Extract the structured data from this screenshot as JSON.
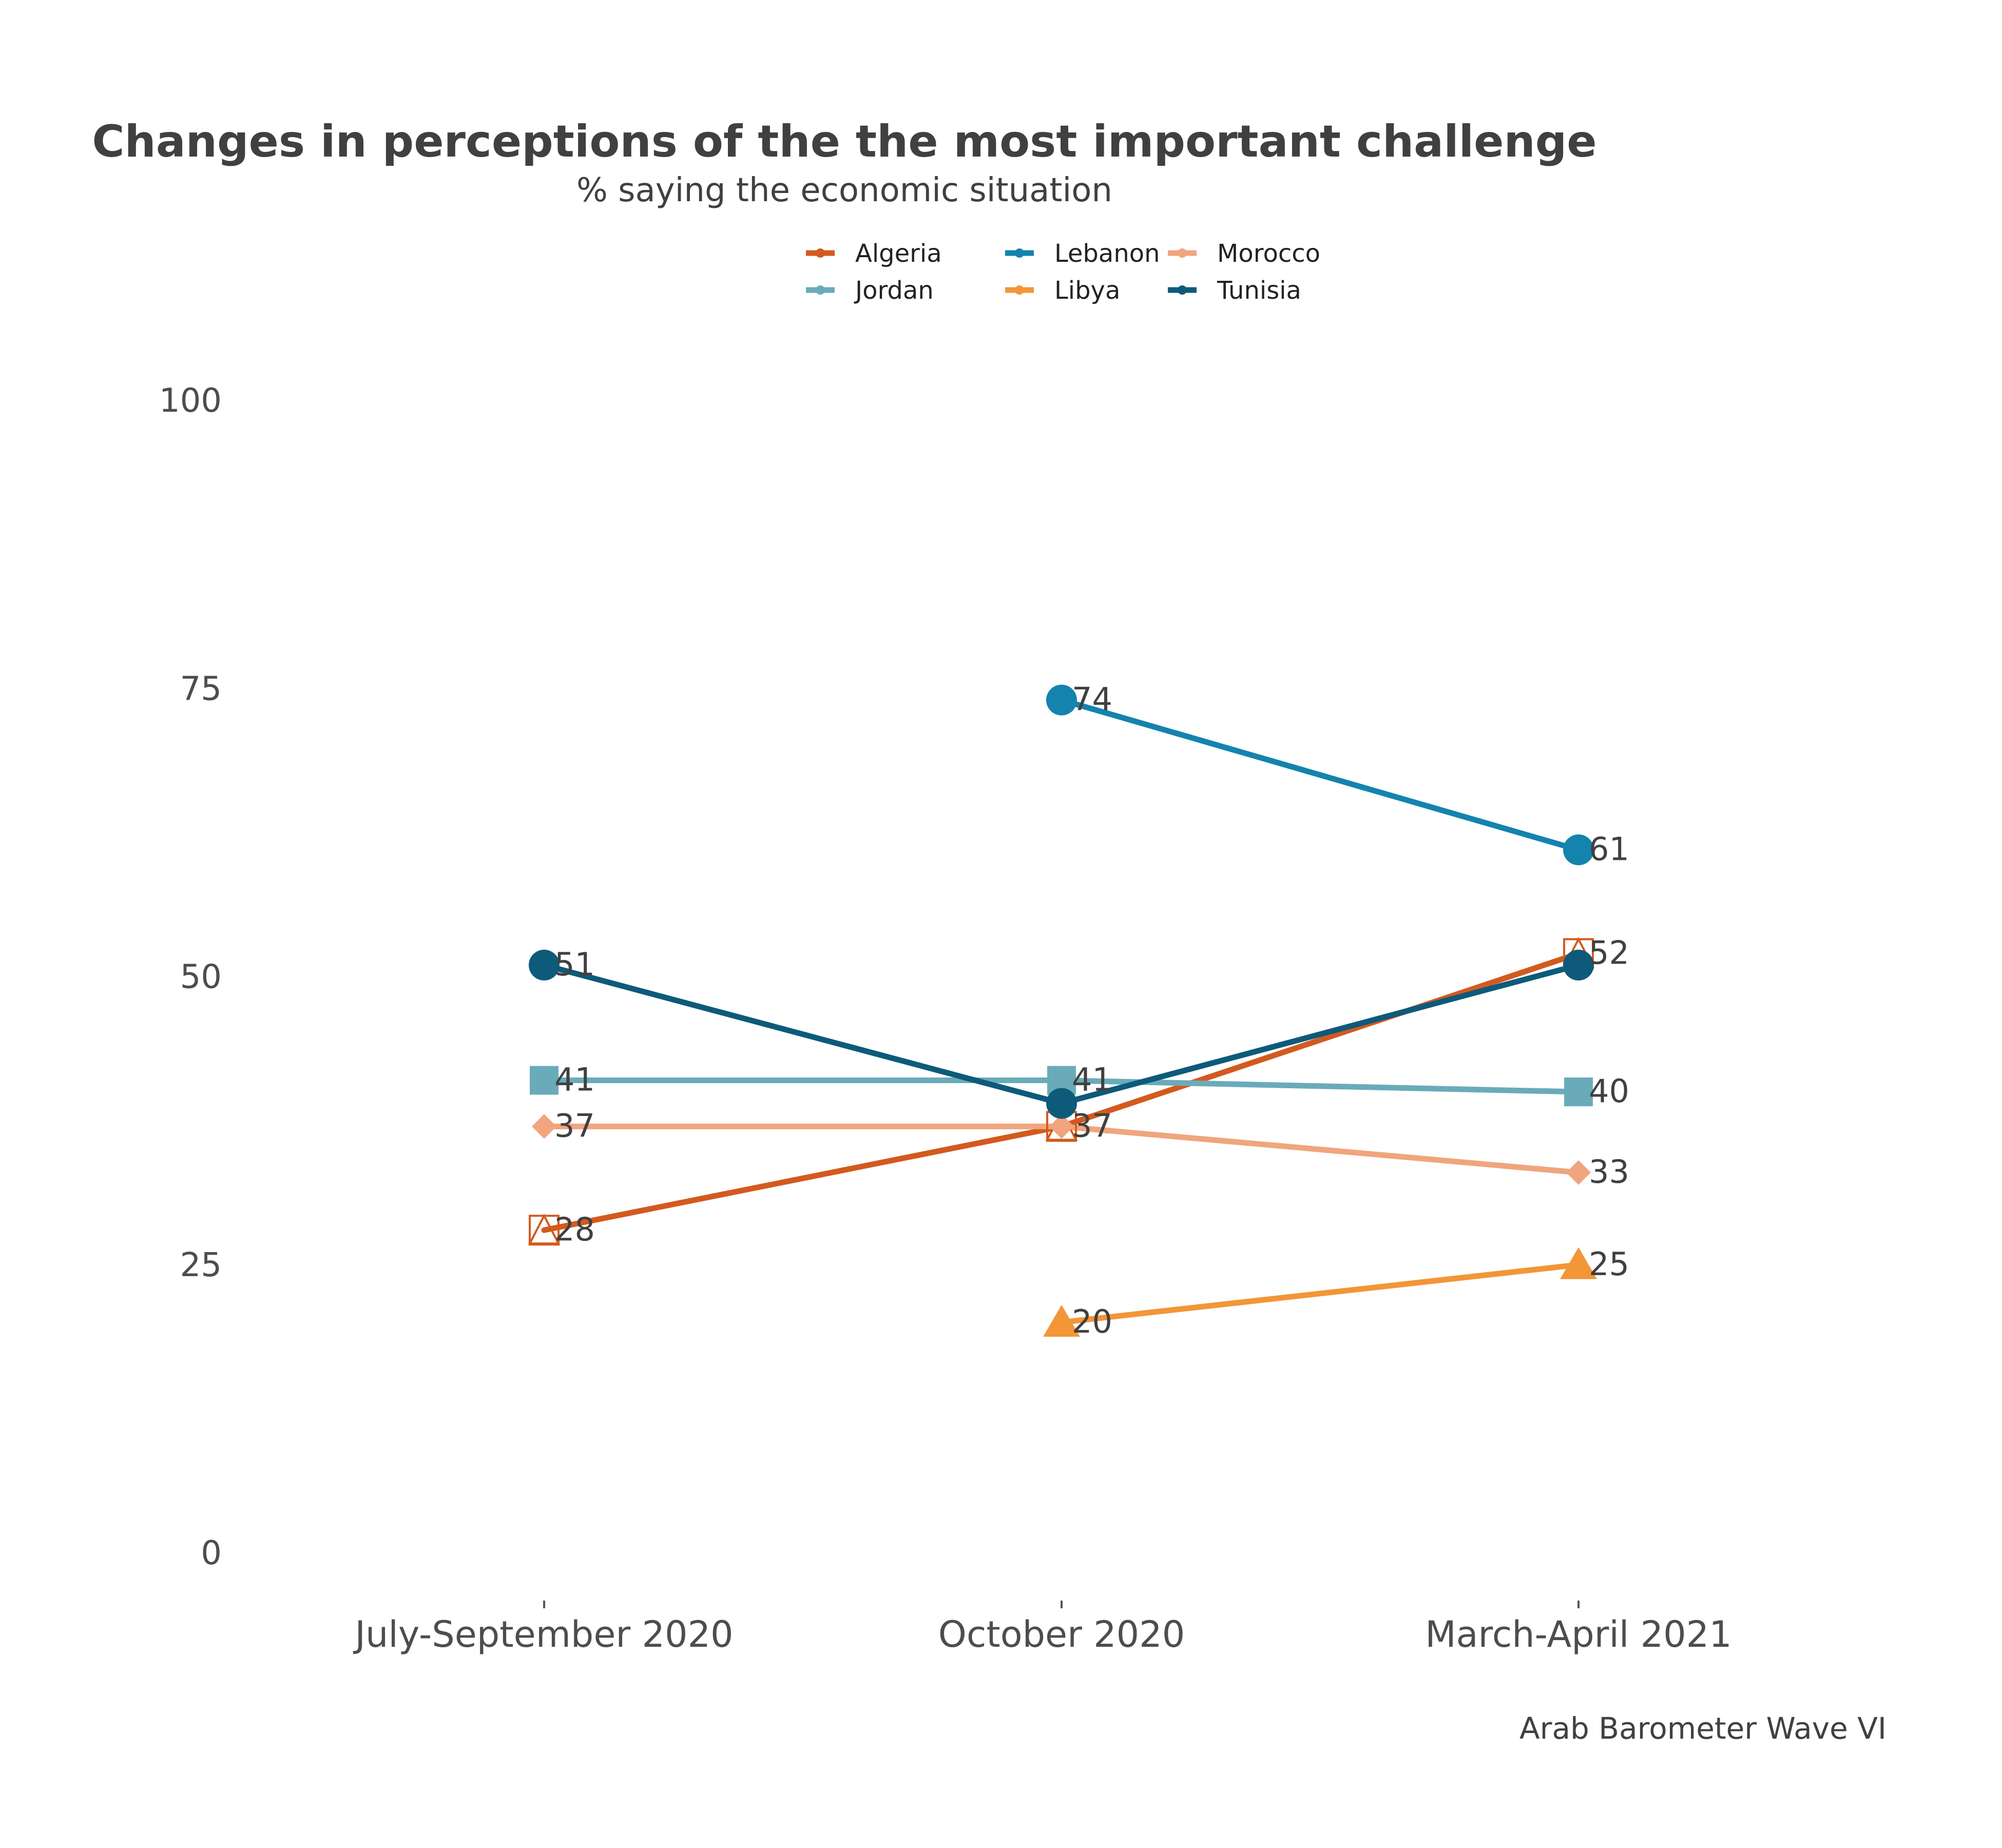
{
  "chart_data": {
    "type": "line",
    "title": "Changes in perceptions of the the most important challenge",
    "subtitle": "% saying the economic situation",
    "caption": "Arab Barometer Wave VI",
    "categories": [
      "July-September 2020",
      "October 2020",
      "March-April 2021"
    ],
    "ylim": [
      0,
      100
    ],
    "yticks": [
      0,
      25,
      50,
      75,
      100
    ],
    "grid": false,
    "legend_position": "top",
    "series": [
      {
        "name": "Algeria",
        "values": [
          28,
          37,
          52
        ],
        "color": "#d35a1f",
        "marker": "open-square-triangle"
      },
      {
        "name": "Jordan",
        "values": [
          41,
          41,
          40
        ],
        "color": "#6aabb9",
        "marker": "square"
      },
      {
        "name": "Lebanon",
        "values": [
          null,
          74,
          61
        ],
        "color": "#1483ae",
        "marker": "circle"
      },
      {
        "name": "Libya",
        "values": [
          null,
          20,
          25
        ],
        "color": "#f29638",
        "marker": "triangle"
      },
      {
        "name": "Morocco",
        "values": [
          37,
          37,
          33
        ],
        "color": "#f0a57e",
        "marker": "diamond"
      },
      {
        "name": "Tunisia",
        "values": [
          51,
          39,
          51
        ],
        "color": "#0e5a7a",
        "marker": "circle"
      }
    ],
    "data_labels": [
      {
        "series": "Tunisia",
        "index": 0,
        "text": "51"
      },
      {
        "series": "Jordan",
        "index": 0,
        "text": "41"
      },
      {
        "series": "Morocco",
        "index": 0,
        "text": "37"
      },
      {
        "series": "Algeria",
        "index": 0,
        "text": "28"
      },
      {
        "series": "Lebanon",
        "index": 1,
        "text": "74"
      },
      {
        "series": "Jordan",
        "index": 1,
        "text": "41"
      },
      {
        "series": "Morocco",
        "index": 1,
        "text": "37"
      },
      {
        "series": "Libya",
        "index": 1,
        "text": "20"
      },
      {
        "series": "Lebanon",
        "index": 2,
        "text": "61"
      },
      {
        "series": "Algeria",
        "index": 2,
        "text": "52"
      },
      {
        "series": "Jordan",
        "index": 2,
        "text": "40"
      },
      {
        "series": "Morocco",
        "index": 2,
        "text": "33"
      },
      {
        "series": "Libya",
        "index": 2,
        "text": "25"
      }
    ]
  }
}
